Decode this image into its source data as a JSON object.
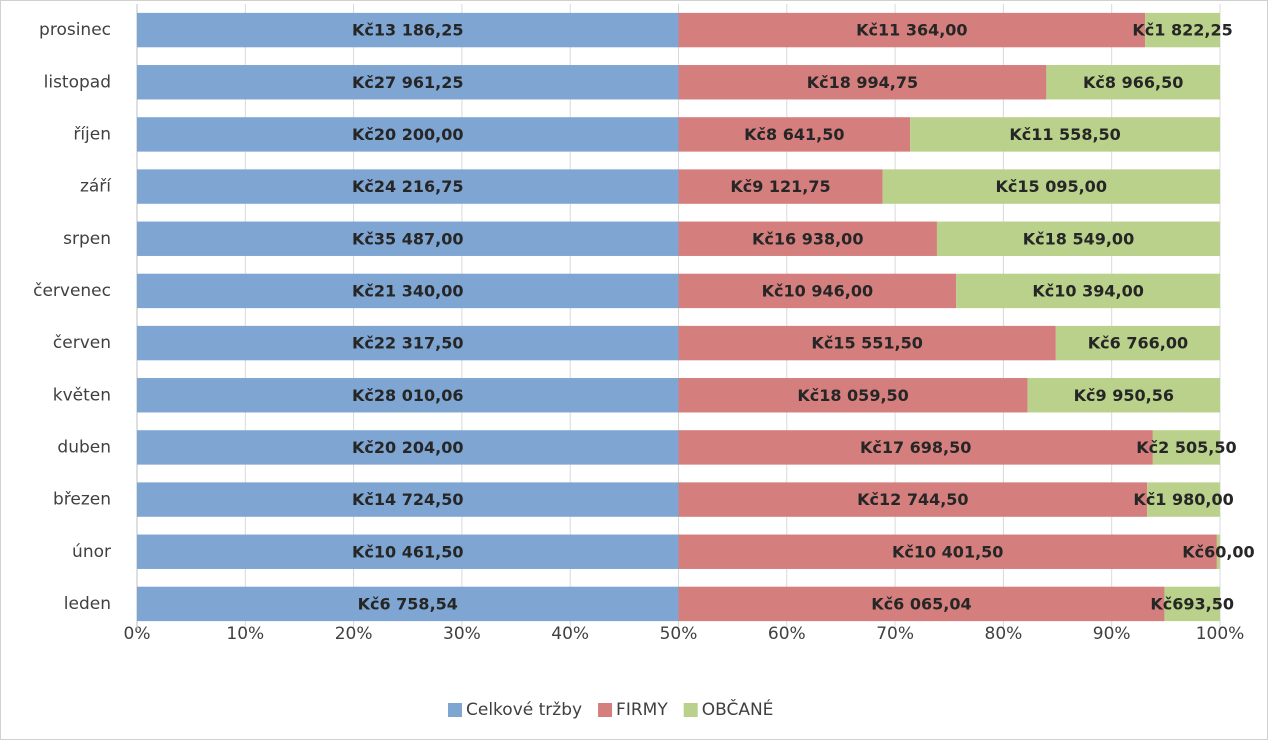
{
  "chart_data": {
    "type": "bar",
    "orientation": "horizontal",
    "stacking": "percent",
    "categories": [
      "leden",
      "únor",
      "březen",
      "duben",
      "květen",
      "červen",
      "červenec",
      "srpen",
      "září",
      "říjen",
      "listopad",
      "prosinec"
    ],
    "series": [
      {
        "name": "Celkové tržby",
        "color": "#7fa6d3",
        "values": [
          6758.54,
          10461.5,
          14724.5,
          20204,
          28010.06,
          22317.5,
          21340,
          35487,
          24216.75,
          20200,
          27961.25,
          13186.25
        ],
        "value_labels": [
          "Kč6 758,54",
          "Kč10 461,50",
          "Kč14 724,50",
          "Kč20 204,00",
          "Kč28 010,06",
          "Kč22 317,50",
          "Kč21 340,00",
          "Kč35 487,00",
          "Kč24 216,75",
          "Kč20 200,00",
          "Kč27 961,25",
          "Kč13 186,25"
        ]
      },
      {
        "name": "FIRMY",
        "color": "#d47f7e",
        "values": [
          6065.04,
          10401.5,
          12744.5,
          17698.5,
          18059.5,
          15551.5,
          10946,
          16938,
          9121.75,
          8641.5,
          18994.75,
          11364
        ],
        "value_labels": [
          "Kč6 065,04",
          "Kč10 401,50",
          "Kč12 744,50",
          "Kč17 698,50",
          "Kč18 059,50",
          "Kč15 551,50",
          "Kč10 946,00",
          "Kč16 938,00",
          "Kč9 121,75",
          "Kč8 641,50",
          "Kč18 994,75",
          "Kč11 364,00"
        ]
      },
      {
        "name": "OBČANÉ",
        "color": "#b9d18b",
        "values": [
          693.5,
          60,
          1980,
          2505.5,
          9950.56,
          6766,
          10394,
          18549,
          15095,
          11558.5,
          8966.5,
          1822.25
        ],
        "value_labels": [
          "Kč693,50",
          "Kč60,00",
          "Kč1 980,00",
          "Kč2 505,50",
          "Kč9 950,56",
          "Kč6 766,00",
          "Kč10 394,00",
          "Kč18 549,00",
          "Kč15 095,00",
          "Kč11 558,50",
          "Kč8 966,50",
          "Kč1 822,25"
        ]
      }
    ],
    "xlim": [
      0,
      100
    ],
    "xticks": [
      {
        "value": 0,
        "label": "0%"
      },
      {
        "value": 10,
        "label": "10%"
      },
      {
        "value": 20,
        "label": "20%"
      },
      {
        "value": 30,
        "label": "30%"
      },
      {
        "value": 40,
        "label": "40%"
      },
      {
        "value": 50,
        "label": "50%"
      },
      {
        "value": 60,
        "label": "60%"
      },
      {
        "value": 70,
        "label": "70%"
      },
      {
        "value": 80,
        "label": "80%"
      },
      {
        "value": 90,
        "label": "90%"
      },
      {
        "value": 100,
        "label": "100%"
      }
    ],
    "grid": true,
    "legend": "bottom"
  }
}
